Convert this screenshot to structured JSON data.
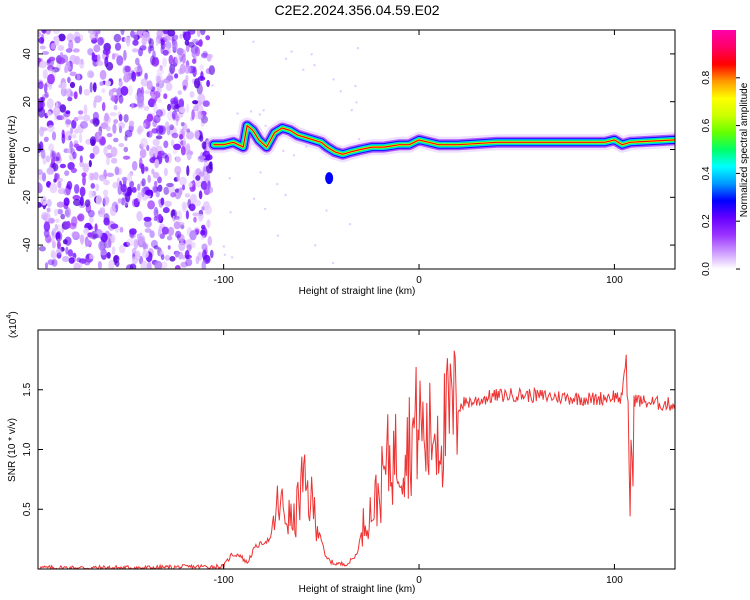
{
  "title": "C2E2.2024.356.04.59.E02",
  "chart_data": [
    {
      "type": "heatmap",
      "xlabel": "Height of straight line (km)",
      "ylabel": "Frequency (Hz)",
      "xlim": [
        -195,
        131
      ],
      "ylim": [
        -50,
        50
      ],
      "xticks": [
        -100,
        0,
        100
      ],
      "yticks": [
        -40,
        -20,
        0,
        20,
        40
      ],
      "noise_region_x": [
        -195,
        -106
      ],
      "ridge": [
        [
          -105,
          2
        ],
        [
          -100,
          2
        ],
        [
          -95,
          3
        ],
        [
          -90,
          1
        ],
        [
          -88,
          10
        ],
        [
          -85,
          8
        ],
        [
          -82,
          4
        ],
        [
          -78,
          1
        ],
        [
          -74,
          7
        ],
        [
          -70,
          9
        ],
        [
          -66,
          8
        ],
        [
          -62,
          6
        ],
        [
          -58,
          5
        ],
        [
          -54,
          4
        ],
        [
          -50,
          3
        ],
        [
          -47,
          1
        ],
        [
          -43,
          -1
        ],
        [
          -39,
          -2
        ],
        [
          -35,
          -1
        ],
        [
          -30,
          0
        ],
        [
          -24,
          1
        ],
        [
          -18,
          1
        ],
        [
          -10,
          2
        ],
        [
          -5,
          2
        ],
        [
          0,
          4
        ],
        [
          5,
          3
        ],
        [
          10,
          2
        ],
        [
          20,
          2
        ],
        [
          40,
          3
        ],
        [
          60,
          3
        ],
        [
          80,
          3
        ],
        [
          95,
          3
        ],
        [
          100,
          4
        ],
        [
          104,
          2
        ],
        [
          108,
          3
        ],
        [
          131,
          4
        ]
      ],
      "colorbar": {
        "label": "Normalized spectral amplitude",
        "ticks": [
          0.0,
          0.2,
          0.4,
          0.6,
          0.8
        ],
        "range": [
          0,
          1
        ],
        "colors": [
          "#ffffff",
          "#cc99ff",
          "#9933ff",
          "#6600ff",
          "#0000ff",
          "#0099ff",
          "#00ffff",
          "#00ff66",
          "#66ff00",
          "#ccff00",
          "#ffff00",
          "#ff9900",
          "#ff0000",
          "#ff0066",
          "#ff00aa"
        ]
      }
    },
    {
      "type": "line",
      "xlabel": "Height of straight line (km)",
      "ylabel": "SNR (10 * v/v)",
      "multiplier": "(x10",
      "multiplier_exp": "4",
      "multiplier_close": ")",
      "xlim": [
        -195,
        131
      ],
      "ylim": [
        0,
        2.0
      ],
      "xticks": [
        -100,
        0,
        100
      ],
      "yticks": [
        0.5,
        1.0,
        1.5
      ],
      "color": "#ee3333",
      "x": [
        -195,
        -170,
        -140,
        -110,
        -100,
        -96,
        -92,
        -88,
        -84,
        -80,
        -76,
        -72,
        -68,
        -64,
        -60,
        -56,
        -52,
        -48,
        -44,
        -40,
        -36,
        -32,
        -28,
        -24,
        -20,
        -16,
        -12,
        -8,
        -4,
        0,
        4,
        8,
        12,
        16,
        20,
        24,
        28,
        32,
        36,
        40,
        50,
        60,
        70,
        80,
        90,
        100,
        104,
        106,
        108,
        110,
        115,
        120,
        125,
        131
      ],
      "y": [
        0.01,
        0.01,
        0.01,
        0.02,
        0.02,
        0.12,
        0.12,
        0.05,
        0.18,
        0.22,
        0.25,
        0.55,
        0.45,
        0.38,
        0.7,
        0.6,
        0.4,
        0.1,
        0.05,
        0.04,
        0.05,
        0.12,
        0.4,
        0.5,
        0.65,
        0.9,
        0.95,
        1.0,
        1.1,
        1.25,
        1.05,
        1.2,
        1.15,
        1.3,
        1.35,
        1.4,
        1.4,
        1.42,
        1.44,
        1.45,
        1.46,
        1.45,
        1.44,
        1.43,
        1.42,
        1.45,
        1.42,
        1.8,
        0.55,
        1.42,
        1.4,
        1.39,
        1.38,
        1.38
      ]
    }
  ]
}
